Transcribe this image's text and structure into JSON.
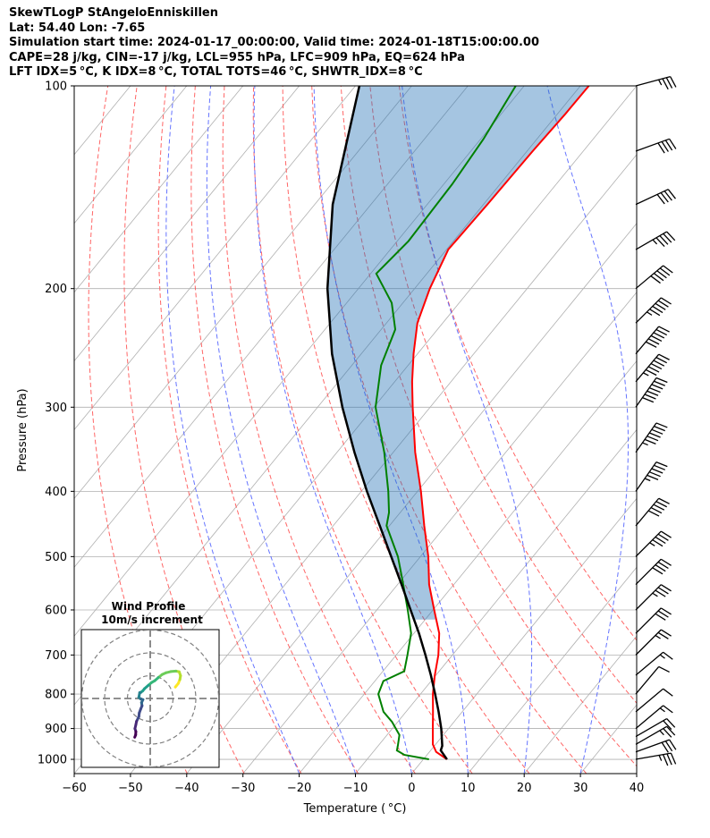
{
  "header": {
    "line1": "SkewTLogP StAngeloEnniskillen",
    "line2": "Lat: 54.40   Lon: -7.65",
    "line3": "Simulation start time: 2024-01-17_00:00:00, Valid time: 2024-01-18T15:00:00.00",
    "line4": "CAPE=28 j/kg, CIN=-17 j/kg, LCL=955 hPa, LFC=909 hPa, EQ=624 hPa",
    "line5": "LFT IDX=5 °C, K IDX=8 °C, TOTAL TOTS=46 °C, SHWTR_IDX=8 °C"
  },
  "chart_data": {
    "type": "skew-t log-p",
    "xlabel": "Temperature ( °C)",
    "ylabel": "Pressure (hPa)",
    "xlim": [
      -60,
      40
    ],
    "ylim": [
      1050,
      100
    ],
    "x_ticks": [
      "−60",
      "−50",
      "−40",
      "−30",
      "−20",
      "−10",
      "0",
      "10",
      "20",
      "30",
      "40"
    ],
    "y_ticks": [
      "100",
      "200",
      "300",
      "400",
      "500",
      "600",
      "700",
      "800",
      "900",
      "1000"
    ],
    "grid": true,
    "temperature": {
      "color": "#ff0000",
      "points": [
        [
          1000,
          4.2
        ],
        [
          975,
          1.2
        ],
        [
          950,
          -0.5
        ],
        [
          900,
          -2.8
        ],
        [
          850,
          -5.2
        ],
        [
          800,
          -7.8
        ],
        [
          750,
          -10.2
        ],
        [
          700,
          -12.5
        ],
        [
          650,
          -15.5
        ],
        [
          600,
          -19.8
        ],
        [
          550,
          -24.4
        ],
        [
          500,
          -28.6
        ],
        [
          450,
          -33.8
        ],
        [
          400,
          -39.4
        ],
        [
          350,
          -46.1
        ],
        [
          300,
          -53.1
        ],
        [
          275,
          -56.9
        ],
        [
          250,
          -60.7
        ],
        [
          225,
          -64.5
        ],
        [
          200,
          -67.3
        ],
        [
          175,
          -69.7
        ],
        [
          150,
          -69.3
        ],
        [
          125,
          -69.0
        ],
        [
          110,
          -68.6
        ],
        [
          100,
          -68.5
        ]
      ]
    },
    "dewpoint": {
      "color": "#008000",
      "points": [
        [
          1000,
          1.0
        ],
        [
          985,
          -4.0
        ],
        [
          970,
          -6.0
        ],
        [
          955,
          -6.5
        ],
        [
          920,
          -7.8
        ],
        [
          880,
          -11.0
        ],
        [
          850,
          -14.0
        ],
        [
          800,
          -17.5
        ],
        [
          765,
          -18.5
        ],
        [
          740,
          -16.2
        ],
        [
          700,
          -18.0
        ],
        [
          650,
          -20.5
        ],
        [
          600,
          -24.5
        ],
        [
          550,
          -29.0
        ],
        [
          500,
          -34.0
        ],
        [
          450,
          -40.5
        ],
        [
          430,
          -42.0
        ],
        [
          400,
          -45.2
        ],
        [
          350,
          -51.6
        ],
        [
          300,
          -59.7
        ],
        [
          260,
          -64.8
        ],
        [
          230,
          -67.5
        ],
        [
          210,
          -72.0
        ],
        [
          190,
          -79.0
        ],
        [
          170,
          -78.0
        ],
        [
          140,
          -78.5
        ],
        [
          120,
          -79.5
        ],
        [
          100,
          -81.5
        ]
      ]
    },
    "parcel": {
      "color": "#000000",
      "points": [
        [
          1000,
          4.2
        ],
        [
          970,
          1.8
        ],
        [
          955,
          1.4
        ],
        [
          900,
          -1.3
        ],
        [
          850,
          -4.2
        ],
        [
          800,
          -7.4
        ],
        [
          750,
          -10.9
        ],
        [
          700,
          -14.8
        ],
        [
          650,
          -19.1
        ],
        [
          600,
          -24.0
        ],
        [
          550,
          -29.3
        ],
        [
          500,
          -35.2
        ],
        [
          450,
          -41.7
        ],
        [
          400,
          -49.0
        ],
        [
          350,
          -56.9
        ],
        [
          300,
          -65.6
        ],
        [
          250,
          -75.2
        ],
        [
          200,
          -85.5
        ],
        [
          150,
          -96.8
        ],
        [
          100,
          -109.3
        ]
      ]
    },
    "dry_adiabat_theta_K": [
      230,
      240,
      250,
      260,
      270,
      280,
      290,
      300,
      310,
      320,
      330
    ],
    "moist_adiabat_start_C": [
      -20,
      -10,
      0,
      10,
      20,
      30,
      40,
      50,
      60
    ],
    "wind_barbs": {
      "units": "knots",
      "levels": [
        {
          "p": 1000,
          "spd": 35,
          "dir": 260
        },
        {
          "p": 975,
          "spd": 30,
          "dir": 250
        },
        {
          "p": 950,
          "spd": 25,
          "dir": 240
        },
        {
          "p": 925,
          "spd": 20,
          "dir": 240
        },
        {
          "p": 900,
          "spd": 15,
          "dir": 230
        },
        {
          "p": 850,
          "spd": 10,
          "dir": 230
        },
        {
          "p": 800,
          "spd": 10,
          "dir": 220
        },
        {
          "p": 750,
          "spd": 15,
          "dir": 230
        },
        {
          "p": 700,
          "spd": 25,
          "dir": 225
        },
        {
          "p": 650,
          "spd": 30,
          "dir": 225
        },
        {
          "p": 600,
          "spd": 35,
          "dir": 225
        },
        {
          "p": 550,
          "spd": 40,
          "dir": 225
        },
        {
          "p": 500,
          "spd": 45,
          "dir": 225
        },
        {
          "p": 450,
          "spd": 50,
          "dir": 220
        },
        {
          "p": 400,
          "spd": 55,
          "dir": 215
        },
        {
          "p": 350,
          "spd": 65,
          "dir": 215
        },
        {
          "p": 300,
          "spd": 70,
          "dir": 215
        },
        {
          "p": 275,
          "spd": 65,
          "dir": 220
        },
        {
          "p": 250,
          "spd": 60,
          "dir": 220
        },
        {
          "p": 225,
          "spd": 55,
          "dir": 225
        },
        {
          "p": 200,
          "spd": 50,
          "dir": 230
        },
        {
          "p": 175,
          "spd": 45,
          "dir": 240
        },
        {
          "p": 150,
          "spd": 40,
          "dir": 245
        },
        {
          "p": 125,
          "spd": 40,
          "dir": 250
        },
        {
          "p": 100,
          "spd": 35,
          "dir": 255
        }
      ]
    },
    "hodograph": {
      "title": "Wind Profile",
      "subtitle": "10m/s increment",
      "ring_interval_ms": 10,
      "rings": 3,
      "uv_ms": [
        [
          11.0,
          5.0
        ],
        [
          12.3,
          6.6
        ],
        [
          13.0,
          8.3
        ],
        [
          13.3,
          10.0
        ],
        [
          12.7,
          11.7
        ],
        [
          11.3,
          12.0
        ],
        [
          9.0,
          11.8
        ],
        [
          7.0,
          11.3
        ],
        [
          5.2,
          10.5
        ],
        [
          3.6,
          9.2
        ],
        [
          2.0,
          7.8
        ],
        [
          0.6,
          7.0
        ],
        [
          -0.8,
          5.8
        ],
        [
          -2.5,
          4.3
        ],
        [
          -3.3,
          3.3
        ],
        [
          -4.2,
          2.6
        ],
        [
          -4.6,
          2.6
        ],
        [
          -5.0,
          0.5
        ],
        [
          -4.2,
          -0.2
        ],
        [
          -3.2,
          -0.5
        ],
        [
          -3.8,
          -1.8
        ],
        [
          -3.6,
          -3.2
        ],
        [
          -4.2,
          -4.7
        ],
        [
          -4.8,
          -6.3
        ],
        [
          -5.0,
          -8.0
        ],
        [
          -6.0,
          -10.0
        ],
        [
          -6.3,
          -11.5
        ],
        [
          -6.7,
          -13.2
        ],
        [
          -6.3,
          -14.5
        ],
        [
          -6.4,
          -16.0
        ],
        [
          -6.8,
          -17.0
        ]
      ]
    }
  }
}
